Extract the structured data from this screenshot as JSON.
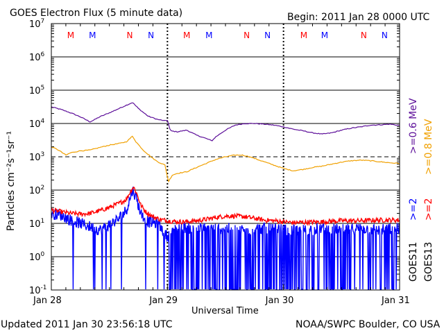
{
  "header": {
    "title": "GOES Electron Flux (5 minute data)",
    "begin": "Begin: 2011 Jan 28 0000 UTC"
  },
  "footer": {
    "updated": "Updated 2011 Jan 30 23:56:18 UTC",
    "credit": "NOAA/SWPC Boulder, CO USA"
  },
  "colors": {
    "red": "#ff0000",
    "blue": "#0000ff",
    "purple": "#5c0e99",
    "orange": "#f0a000",
    "black": "#000000"
  },
  "chart_data": {
    "type": "line",
    "title": "GOES Electron Flux (5 minute data)",
    "xlabel": "Universal Time",
    "ylabel": "Particles cm⁻²s⁻¹sr⁻¹",
    "x_unit": "hours since 2011 Jan 28 0000 UTC",
    "xlim": [
      0,
      72
    ],
    "ylim_log10": [
      -1,
      7
    ],
    "yscale": "log",
    "x_ticks": [
      {
        "x": 0,
        "label": "Jan 28"
      },
      {
        "x": 24,
        "label": "Jan 29"
      },
      {
        "x": 48,
        "label": "Jan 30"
      },
      {
        "x": 72,
        "label": "Jan 31"
      }
    ],
    "y_ticks": [
      {
        "exp": 7,
        "base": "10",
        "sup": "7"
      },
      {
        "exp": 6,
        "base": "10",
        "sup": "6"
      },
      {
        "exp": 5,
        "base": "10",
        "sup": "5"
      },
      {
        "exp": 4,
        "base": "10",
        "sup": "4"
      },
      {
        "exp": 3,
        "base": "10",
        "sup": "3"
      },
      {
        "exp": 2,
        "base": "10",
        "sup": "2"
      },
      {
        "exp": 1,
        "base": "10",
        "sup": "1"
      },
      {
        "exp": 0,
        "base": "10",
        "sup": "0"
      },
      {
        "exp": -1,
        "base": "10",
        "sup": "-1"
      }
    ],
    "alert_threshold_log10": 3,
    "day_markers_x": [
      24,
      48
    ],
    "mn_markers": [
      {
        "x": 4.0,
        "label": "M",
        "sat": "GOES13"
      },
      {
        "x": 8.5,
        "label": "M",
        "sat": "GOES11"
      },
      {
        "x": 16.2,
        "label": "N",
        "sat": "GOES13"
      },
      {
        "x": 20.6,
        "label": "N",
        "sat": "GOES11"
      },
      {
        "x": 28.0,
        "label": "M",
        "sat": "GOES13"
      },
      {
        "x": 32.6,
        "label": "M",
        "sat": "GOES11"
      },
      {
        "x": 40.4,
        "label": "N",
        "sat": "GOES13"
      },
      {
        "x": 44.7,
        "label": "N",
        "sat": "GOES11"
      },
      {
        "x": 52.2,
        "label": "M",
        "sat": "GOES13"
      },
      {
        "x": 56.5,
        "label": "M",
        "sat": "GOES11"
      },
      {
        "x": 64.6,
        "label": "N",
        "sat": "GOES13"
      },
      {
        "x": 68.9,
        "label": "N",
        "sat": "GOES11"
      }
    ],
    "series": [
      {
        "name": ">=0.6 MeV (GOES11)",
        "color": "#5c0e99",
        "style": "smooth",
        "points": [
          [
            0,
            4.5
          ],
          [
            2,
            4.42
          ],
          [
            4,
            4.32
          ],
          [
            6,
            4.2
          ],
          [
            8,
            4.05
          ],
          [
            9,
            4.12
          ],
          [
            10,
            4.2
          ],
          [
            12,
            4.32
          ],
          [
            14,
            4.45
          ],
          [
            15.5,
            4.55
          ],
          [
            16.8,
            4.63
          ],
          [
            18,
            4.45
          ],
          [
            20,
            4.22
          ],
          [
            22,
            4.12
          ],
          [
            23.5,
            4.08
          ],
          [
            24,
            4.1
          ],
          [
            24.6,
            3.78
          ],
          [
            26,
            3.75
          ],
          [
            28,
            3.8
          ],
          [
            30,
            3.65
          ],
          [
            32,
            3.55
          ],
          [
            33.2,
            3.48
          ],
          [
            34,
            3.6
          ],
          [
            36,
            3.8
          ],
          [
            38,
            3.95
          ],
          [
            40,
            4.0
          ],
          [
            42,
            4.0
          ],
          [
            44,
            3.98
          ],
          [
            46,
            3.95
          ],
          [
            48,
            3.9
          ],
          [
            50,
            3.83
          ],
          [
            52,
            3.78
          ],
          [
            54,
            3.72
          ],
          [
            56,
            3.68
          ],
          [
            58,
            3.72
          ],
          [
            60,
            3.8
          ],
          [
            62,
            3.86
          ],
          [
            64,
            3.9
          ],
          [
            66,
            3.95
          ],
          [
            68,
            3.96
          ],
          [
            70,
            3.98
          ],
          [
            72,
            3.94
          ]
        ]
      },
      {
        "name": ">=0.8 MeV (GOES13)",
        "color": "#f0a000",
        "style": "smooth",
        "points": [
          [
            0,
            3.3
          ],
          [
            1.5,
            3.2
          ],
          [
            3,
            3.05
          ],
          [
            4,
            3.12
          ],
          [
            6,
            3.18
          ],
          [
            8,
            3.2
          ],
          [
            10,
            3.28
          ],
          [
            12,
            3.35
          ],
          [
            14,
            3.4
          ],
          [
            15.5,
            3.45
          ],
          [
            16.8,
            3.62
          ],
          [
            17.5,
            3.45
          ],
          [
            19,
            3.2
          ],
          [
            21,
            2.95
          ],
          [
            22,
            2.85
          ],
          [
            23.5,
            2.75
          ],
          [
            24.2,
            2.25
          ],
          [
            25,
            2.45
          ],
          [
            26,
            2.5
          ],
          [
            28,
            2.55
          ],
          [
            30,
            2.68
          ],
          [
            32,
            2.8
          ],
          [
            34,
            2.92
          ],
          [
            36,
            3.0
          ],
          [
            38,
            3.05
          ],
          [
            39.5,
            3.05
          ],
          [
            41,
            3.0
          ],
          [
            42,
            2.95
          ],
          [
            44,
            2.85
          ],
          [
            46,
            2.75
          ],
          [
            48,
            2.65
          ],
          [
            50,
            2.58
          ],
          [
            52,
            2.62
          ],
          [
            54,
            2.68
          ],
          [
            56,
            2.72
          ],
          [
            58,
            2.78
          ],
          [
            60,
            2.84
          ],
          [
            62,
            2.88
          ],
          [
            64,
            2.9
          ],
          [
            66,
            2.88
          ],
          [
            68,
            2.85
          ],
          [
            70,
            2.82
          ],
          [
            72,
            2.8
          ]
        ]
      },
      {
        "name": ">=2 MeV (GOES13)",
        "color": "#ff0000",
        "style": "noisy",
        "points": [
          [
            0,
            1.4
          ],
          [
            2,
            1.35
          ],
          [
            4,
            1.3
          ],
          [
            6,
            1.28
          ],
          [
            8,
            1.3
          ],
          [
            10,
            1.38
          ],
          [
            12,
            1.48
          ],
          [
            14,
            1.6
          ],
          [
            15.5,
            1.72
          ],
          [
            16.5,
            2.0
          ],
          [
            17,
            2.1
          ],
          [
            17.6,
            1.92
          ],
          [
            18.5,
            1.55
          ],
          [
            19.5,
            1.35
          ],
          [
            21,
            1.2
          ],
          [
            22.5,
            1.12
          ],
          [
            24,
            1.08
          ],
          [
            26,
            1.05
          ],
          [
            28,
            1.05
          ],
          [
            30,
            1.08
          ],
          [
            32,
            1.12
          ],
          [
            34,
            1.18
          ],
          [
            36,
            1.22
          ],
          [
            38,
            1.22
          ],
          [
            40,
            1.2
          ],
          [
            42,
            1.15
          ],
          [
            44,
            1.1
          ],
          [
            46,
            1.08
          ],
          [
            48,
            1.05
          ],
          [
            50,
            1.02
          ],
          [
            52,
            1.03
          ],
          [
            56,
            1.05
          ],
          [
            60,
            1.08
          ],
          [
            64,
            1.08
          ],
          [
            68,
            1.1
          ],
          [
            72,
            1.1
          ]
        ]
      },
      {
        "name": ">=2 MeV (GOES11)",
        "color": "#0000ff",
        "style": "spiky",
        "points": [
          [
            0,
            1.3
          ],
          [
            2,
            1.25
          ],
          [
            4,
            1.1
          ],
          [
            6,
            1.0
          ],
          [
            8,
            0.9
          ],
          [
            10,
            0.8
          ],
          [
            12,
            0.95
          ],
          [
            14,
            1.15
          ],
          [
            15.5,
            1.4
          ],
          [
            16.8,
            2.0
          ],
          [
            17.5,
            1.8
          ],
          [
            18.5,
            1.3
          ],
          [
            20,
            1.05
          ],
          [
            22,
            1.0
          ],
          [
            24,
            0.6
          ],
          [
            26,
            0.9
          ],
          [
            30,
            0.85
          ],
          [
            36,
            0.85
          ],
          [
            40,
            0.8
          ],
          [
            44,
            0.85
          ],
          [
            48,
            0.8
          ],
          [
            52,
            0.8
          ],
          [
            56,
            0.85
          ],
          [
            60,
            0.8
          ],
          [
            64,
            0.85
          ],
          [
            68,
            0.8
          ],
          [
            72,
            0.85
          ]
        ],
        "dropouts_x": [
          8.7,
          9.0,
          10.5,
          11.3,
          19.5,
          22.0,
          23.3,
          24.4,
          25.5,
          26.0
        ]
      }
    ],
    "legend_right": [
      {
        "text": ">=0.6 MeV",
        "color": "#5c0e99"
      },
      {
        "text": ">=0.8 MeV",
        "color": "#f0a000"
      },
      {
        "text": ">=2",
        "color": "#0000ff"
      },
      {
        "text": ">=2",
        "color": "#ff0000"
      },
      {
        "text": "GOES11",
        "color": "#000000"
      },
      {
        "text": "GOES13",
        "color": "#000000"
      }
    ]
  }
}
